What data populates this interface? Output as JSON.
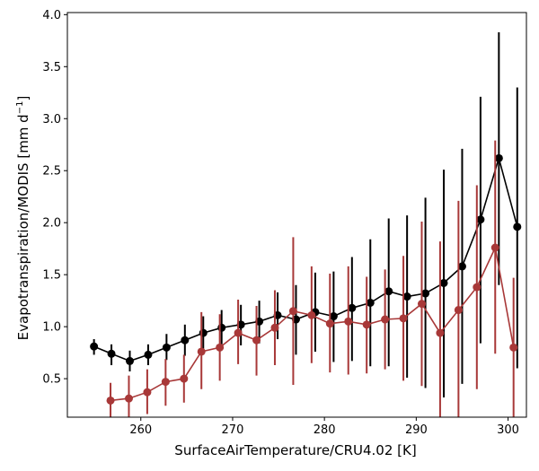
{
  "chart_data": {
    "type": "line",
    "xlabel": "SurfaceAirTemperature/CRU4.02 [K]",
    "ylabel": {
      "main": "Evapotranspiration/MODIS [mm d",
      "sup": "−1",
      "close": "]"
    },
    "xlim": [
      252,
      302
    ],
    "ylim": [
      0.13,
      4.02
    ],
    "xticks": [
      260,
      270,
      280,
      290,
      300
    ],
    "xtick_labels": [
      "260",
      "270",
      "280",
      "290",
      "300"
    ],
    "yticks": [
      0.5,
      1.0,
      1.5,
      2.0,
      2.5,
      3.0,
      3.5,
      4.0
    ],
    "ytick_labels": [
      "0.5",
      "1.0",
      "1.5",
      "2.0",
      "2.5",
      "3.0",
      "3.5",
      "4.0"
    ],
    "series": [
      {
        "color": "#000000",
        "x": [
          254.9,
          256.8,
          258.8,
          260.8,
          262.8,
          264.8,
          266.8,
          268.8,
          270.9,
          272.9,
          274.9,
          276.9,
          279.0,
          281.0,
          283.0,
          285.0,
          287.0,
          289.0,
          291.0,
          293.0,
          295.0,
          297.0,
          299.0,
          301.0
        ],
        "y": [
          0.81,
          0.74,
          0.67,
          0.73,
          0.8,
          0.87,
          0.94,
          0.99,
          1.02,
          1.05,
          1.11,
          1.07,
          1.14,
          1.1,
          1.18,
          1.23,
          1.34,
          1.29,
          1.32,
          1.42,
          1.58,
          2.03,
          2.62,
          1.96
        ],
        "err_low": [
          0.73,
          0.63,
          0.57,
          0.63,
          0.68,
          0.72,
          0.79,
          0.83,
          0.82,
          0.84,
          0.88,
          0.73,
          0.76,
          0.66,
          0.67,
          0.62,
          0.62,
          0.51,
          0.41,
          0.32,
          0.45,
          0.84,
          1.4,
          0.6
        ],
        "err_high": [
          0.88,
          0.83,
          0.77,
          0.83,
          0.93,
          1.02,
          1.1,
          1.16,
          1.21,
          1.25,
          1.33,
          1.4,
          1.52,
          1.53,
          1.67,
          1.84,
          2.04,
          2.07,
          2.24,
          2.51,
          2.71,
          3.21,
          3.83,
          3.3
        ]
      },
      {
        "color": "#a83838",
        "x": [
          256.7,
          258.7,
          260.7,
          262.7,
          264.7,
          266.6,
          268.6,
          270.6,
          272.6,
          274.6,
          276.6,
          278.6,
          280.6,
          282.6,
          284.6,
          286.6,
          288.6,
          290.6,
          292.6,
          294.6,
          296.6,
          298.6,
          300.6
        ],
        "y": [
          0.29,
          0.31,
          0.37,
          0.47,
          0.5,
          0.76,
          0.8,
          0.94,
          0.87,
          0.99,
          1.15,
          1.11,
          1.03,
          1.05,
          1.02,
          1.07,
          1.08,
          1.22,
          0.94,
          1.16,
          1.38,
          1.76,
          0.8
        ],
        "err_low": [
          0.13,
          0.13,
          0.16,
          0.24,
          0.27,
          0.4,
          0.48,
          0.64,
          0.53,
          0.63,
          0.44,
          0.65,
          0.56,
          0.54,
          0.55,
          0.59,
          0.48,
          0.43,
          0.13,
          0.13,
          0.4,
          0.74,
          0.13
        ],
        "err_high": [
          0.46,
          0.53,
          0.59,
          0.69,
          0.73,
          1.14,
          1.12,
          1.26,
          1.2,
          1.35,
          1.86,
          1.58,
          1.51,
          1.58,
          1.48,
          1.55,
          1.68,
          2.01,
          1.82,
          2.21,
          2.36,
          2.79,
          1.47
        ]
      }
    ]
  }
}
